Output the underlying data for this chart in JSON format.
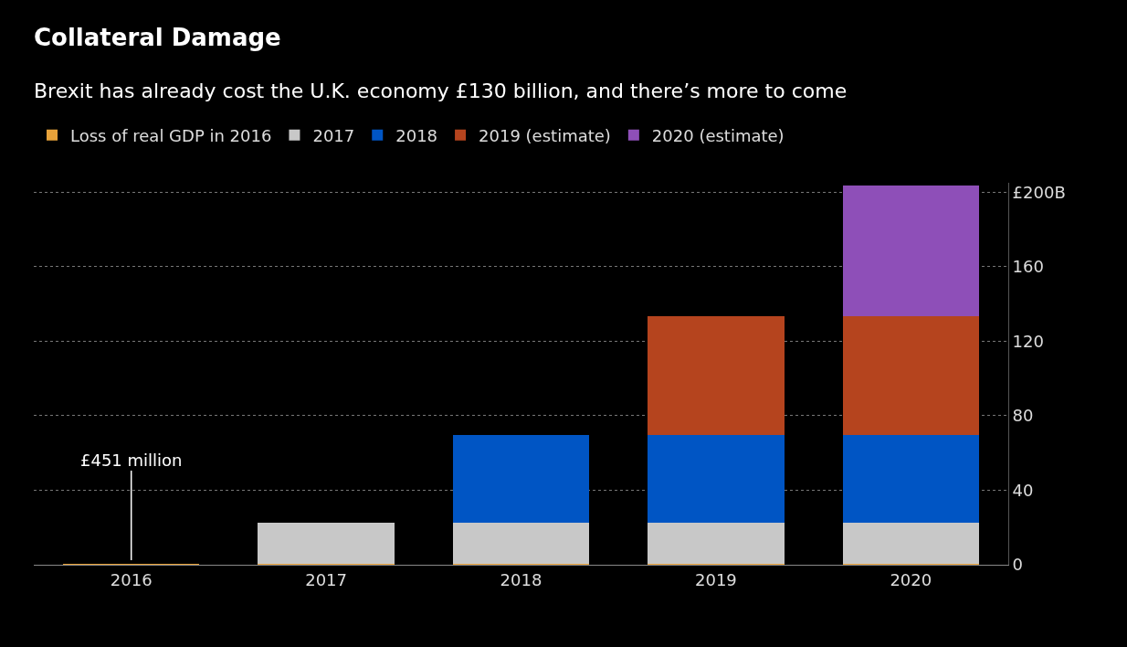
{
  "chart_data": {
    "type": "bar",
    "title": "Collateral Damage",
    "subtitle": "Brexit has already cost the U.K. economy £130 billion, and there’s more to come",
    "categories": [
      "2016",
      "2017",
      "2018",
      "2019",
      "2020"
    ],
    "series": [
      {
        "name": "Loss of real GDP in 2016",
        "color": "#e8a23a",
        "values": [
          0.451,
          0.451,
          0.451,
          0.451,
          0.451
        ]
      },
      {
        "name": "2017",
        "color": "#c8c8c8",
        "values": [
          null,
          22,
          22,
          22,
          22
        ]
      },
      {
        "name": "2018",
        "color": "#0055c4",
        "values": [
          null,
          null,
          47,
          47,
          47
        ]
      },
      {
        "name": "2019 (estimate)",
        "color": "#b5441e",
        "values": [
          null,
          null,
          null,
          64,
          64
        ]
      },
      {
        "name": "2020 (estimate)",
        "color": "#8e4fb8",
        "values": [
          null,
          null,
          null,
          null,
          70
        ]
      }
    ],
    "stacked": true,
    "ylim": [
      0,
      205
    ],
    "yticks": [
      0,
      40,
      80,
      120,
      {
        "value": 200,
        "label": "£200B"
      },
      160
    ],
    "grid": "y",
    "legend": "top left",
    "annotations": [
      {
        "text": "£451 million",
        "x": "2016",
        "y": 0.451
      }
    ]
  }
}
